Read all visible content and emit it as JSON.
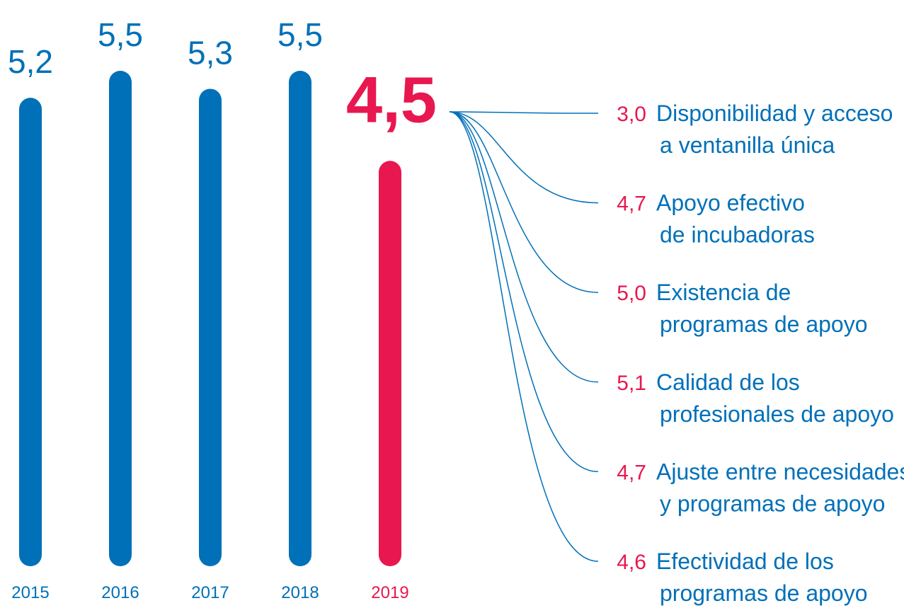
{
  "chart_data": {
    "type": "bar",
    "categories": [
      "2015",
      "2016",
      "2017",
      "2018",
      "2019"
    ],
    "values": [
      5.2,
      5.5,
      5.3,
      5.5,
      4.5
    ],
    "value_labels": [
      "5,2",
      "5,5",
      "5,3",
      "5,5",
      "4,5"
    ],
    "colors": [
      "#0070b8",
      "#0070b8",
      "#0070b8",
      "#0070b8",
      "#e8174f"
    ],
    "breakdown": [
      {
        "value": 3.0,
        "value_label": "3,0",
        "label": [
          "Disponibilidad y acceso",
          "a ventanilla única"
        ]
      },
      {
        "value": 4.7,
        "value_label": "4,7",
        "label": [
          "Apoyo efectivo",
          "de incubadoras"
        ]
      },
      {
        "value": 5.0,
        "value_label": "5,0",
        "label": [
          "Existencia de",
          "programas de apoyo"
        ]
      },
      {
        "value": 5.1,
        "value_label": "5,1",
        "label": [
          "Calidad de los",
          "profesionales de apoyo"
        ]
      },
      {
        "value": 4.7,
        "value_label": "4,7",
        "label": [
          "Ajuste entre necesidades",
          "y programas de apoyo"
        ]
      },
      {
        "value": 4.6,
        "value_label": "4,6",
        "label": [
          "Efectividad de los",
          "programas de apoyo"
        ]
      }
    ]
  }
}
